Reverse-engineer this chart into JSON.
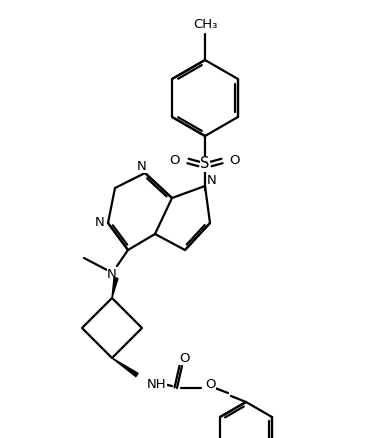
{
  "bg": "#ffffff",
  "lw": 1.6,
  "fs": 9.5,
  "figsize": [
    3.72,
    4.38
  ],
  "dpi": 100
}
